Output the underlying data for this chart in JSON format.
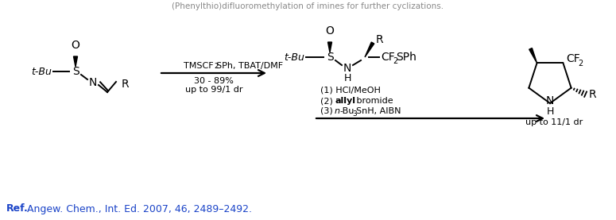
{
  "title_text": "(Phenylthio)difluoromethylation of imines for further cyclizations.",
  "ref_bold": "Ref.",
  "ref_text": " Angew. Chem., Int. Ed. 2007, 46, 2489–2492.",
  "reagent1_a": "TMSCF",
  "reagent1_b": "2",
  "reagent1_c": "SPh, TBAT/DMF",
  "yield_line1": "30 - 89%",
  "yield_line2": "up to 99/1 dr",
  "step1": "(1) HCl/MeOH",
  "step2": "(2) ",
  "step2_bold": "allyl",
  "step2_end": " bromide",
  "step3": "(3) ",
  "step3_italic": "n",
  "step3_end": "-Bu",
  "step3_sub": "3",
  "step3_tail": "SnH, AIBN",
  "dr_text": "up to 11/1 dr",
  "bg_color": "#ffffff",
  "text_color": "#000000",
  "blue_color": "#1b44c8"
}
